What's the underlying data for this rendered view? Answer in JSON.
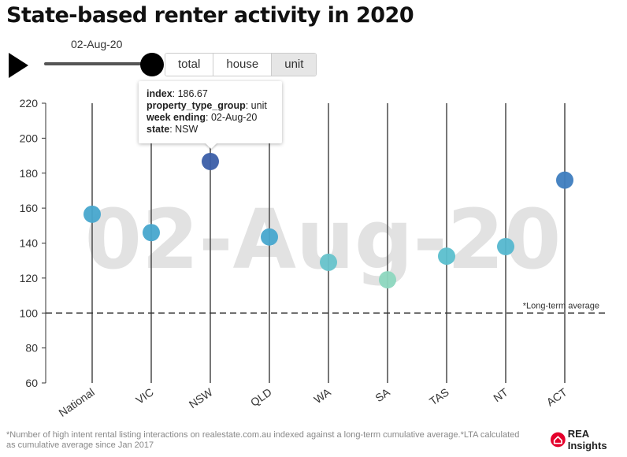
{
  "title": "State-based renter activity in 2020",
  "slider": {
    "date_label": "02-Aug-20",
    "position_fraction": 1.0
  },
  "toggle": {
    "options": [
      "total",
      "house",
      "unit"
    ],
    "selected": "unit"
  },
  "tooltip": {
    "rows": [
      {
        "key": "index",
        "value": ": 186.67"
      },
      {
        "key": "property_type_group",
        "value": ": unit"
      },
      {
        "key": "week ending",
        "value": ": 02-Aug-20"
      },
      {
        "key": "state",
        "value": ": NSW"
      }
    ]
  },
  "chart_data": {
    "type": "scatter",
    "title": "State-based renter activity in 2020",
    "watermark": "02-Aug-20",
    "categories": [
      "National",
      "VIC",
      "NSW",
      "QLD",
      "WA",
      "SA",
      "TAS",
      "NT",
      "ACT"
    ],
    "values": [
      156.5,
      146,
      186.67,
      143.5,
      129,
      119,
      132.5,
      138,
      176
    ],
    "colors": [
      "#47a7cd",
      "#47a7cd",
      "#3b5ea8",
      "#47a7cd",
      "#67c3cb",
      "#8dd7bf",
      "#5bbfcd",
      "#55b7cf",
      "#3e7dbf"
    ],
    "ylim": [
      60,
      220
    ],
    "yticks": [
      60,
      80,
      100,
      120,
      140,
      160,
      180,
      200,
      220
    ],
    "reference_line": {
      "value": 100,
      "label": "*Long-term average"
    }
  },
  "footnote": "*Number of high intent rental listing interactions on realestate.com.au indexed against a long-term cumulative average.*LTA calculated as cumulative average since Jan 2017",
  "logo": {
    "text": "REA Insights",
    "color": "#e4002b"
  }
}
